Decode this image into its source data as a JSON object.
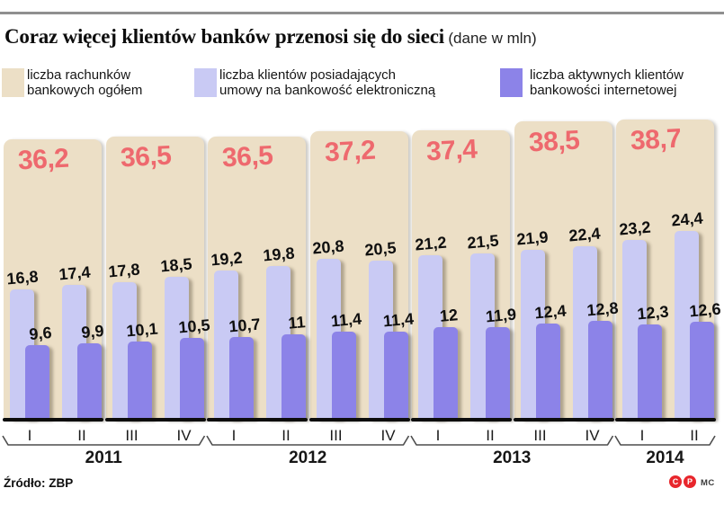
{
  "header": {
    "title": "Coraz więcej klientów banków przenosi się do sieci",
    "subtitle": "(dane w mln)"
  },
  "legend": {
    "items": [
      {
        "swatch_color": "#ecdfc6",
        "icon": "beige-swatch",
        "line1": "liczba rachunków",
        "line2": "bankowych ogółem"
      },
      {
        "swatch_color": "#c9caf4",
        "icon": "lavender-swatch",
        "line1": "liczba klientów posiadających",
        "line2": "umowy na bankowość elektroniczną"
      },
      {
        "swatch_color": "#8c83e8",
        "icon": "purple-swatch",
        "line1": "liczba aktywnych klientów",
        "line2": "bankowości internetowej"
      }
    ]
  },
  "chart_data": {
    "type": "bar",
    "title": "Coraz więcej klientów banków przenosi się do sieci",
    "unit": "mln",
    "value_color": "#0f0f0f",
    "total_value_color": "#ee696e",
    "x_quarters": [
      "I",
      "II",
      "III",
      "IV",
      "I",
      "II",
      "III",
      "IV",
      "I",
      "II",
      "III",
      "IV",
      "I",
      "II"
    ],
    "years": [
      {
        "label": "2011",
        "quarters": 4
      },
      {
        "label": "2012",
        "quarters": 4
      },
      {
        "label": "2013",
        "quarters": 4
      },
      {
        "label": "2014",
        "quarters": 2
      }
    ],
    "series": [
      {
        "name": "liczba rachunków bankowych ogółem",
        "color": "#ecdfc6",
        "per": "half-year",
        "values": [
          36.2,
          36.5,
          36.5,
          37.2,
          37.4,
          38.5,
          38.7
        ]
      },
      {
        "name": "liczba klientów posiadających umowy na bankowość elektroniczną",
        "color": "#c9caf4",
        "per": "quarter",
        "values": [
          16.8,
          17.4,
          17.8,
          18.5,
          19.2,
          19.8,
          20.8,
          20.5,
          21.2,
          21.5,
          21.9,
          22.4,
          23.2,
          24.4
        ]
      },
      {
        "name": "liczba aktywnych klientów bankowości internetowej",
        "color": "#8c83e8",
        "per": "quarter",
        "values": [
          9.6,
          9.9,
          10.1,
          10.5,
          10.7,
          11,
          11.4,
          11.4,
          12,
          11.9,
          12.4,
          12.8,
          12.3,
          12.6
        ]
      }
    ],
    "ylim": [
      0,
      38.7
    ],
    "grid": false,
    "legend_position": "top"
  },
  "footer": {
    "source": "Źródło: ZBP",
    "badges": [
      "C",
      "P"
    ],
    "credit": "MC"
  }
}
